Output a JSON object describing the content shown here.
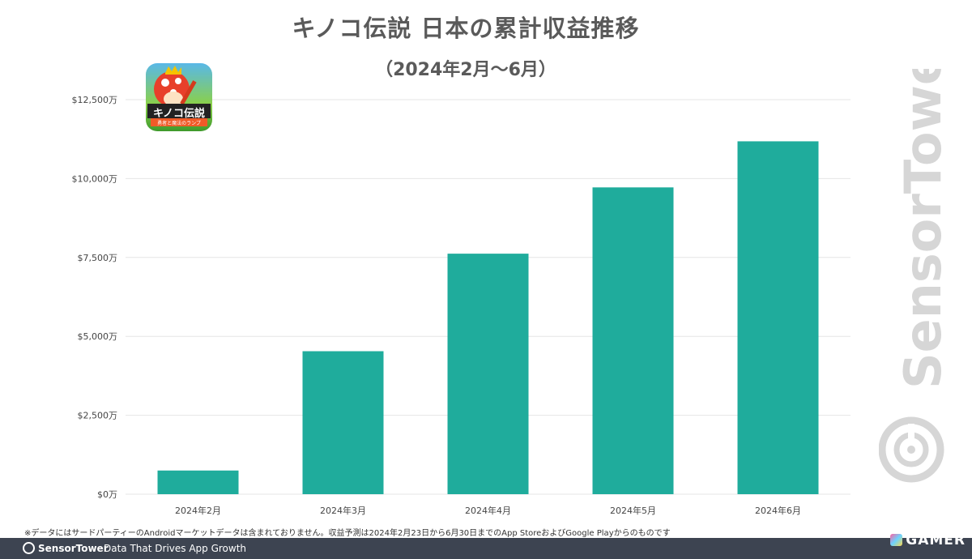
{
  "header": {
    "title": "キノコ伝説 日本の累計収益推移",
    "subtitle": "（2024年2月～6月）"
  },
  "app_icon": {
    "name": "mushroom-game-icon",
    "text": "キノコ伝説",
    "subtext": "勇者と魔法のランプ"
  },
  "chart_data": {
    "type": "bar",
    "categories": [
      "2024年2月",
      "2024年3月",
      "2024年4月",
      "2024年5月",
      "2024年6月"
    ],
    "values": [
      750,
      4530,
      7620,
      9720,
      11180
    ],
    "ylim": [
      0,
      12500
    ],
    "yticks": [
      0,
      2500,
      5000,
      7500,
      10000,
      12500
    ],
    "ytick_labels": [
      "$0万",
      "$2,500万",
      "$5,000万",
      "$7,500万",
      "$10,000万",
      "$12,500万"
    ],
    "bar_color": "#1fac9c",
    "grid": true,
    "legend": "none"
  },
  "footnote": "※データにはサードパーティーのAndroidマーケットデータは含まれておりません。収益予測は2024年2月23日から6月30日までのApp StoreおよびGoogle Playからのものです",
  "watermark": "SensorTower",
  "footer": {
    "brand": "SensorTower",
    "tagline": "Data That Drives App Growth"
  },
  "gamer_logo": "GAMER"
}
